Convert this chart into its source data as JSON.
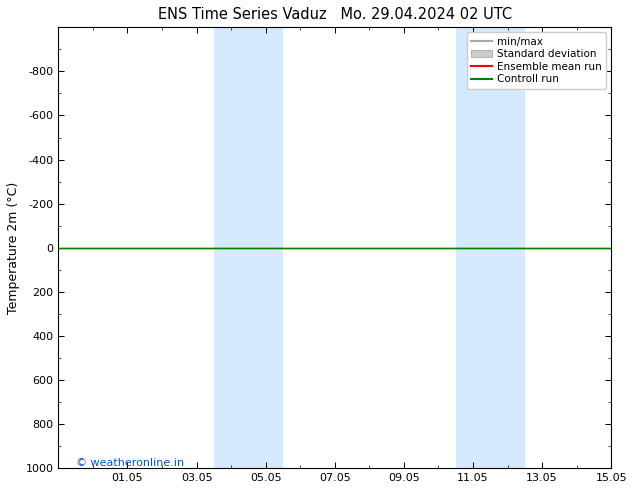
{
  "title_left": "ENS Time Series Vaduz",
  "title_right": "Mo. 29.04.2024 02 UTC",
  "ylabel": "Temperature 2m (°C)",
  "xlim": [
    0,
    16
  ],
  "xtick_positions": [
    2,
    4,
    6,
    8,
    10,
    12,
    14,
    16
  ],
  "xtick_labels": [
    "01.05",
    "03.05",
    "05.05",
    "07.05",
    "09.05",
    "11.05",
    "13.05",
    "15.05"
  ],
  "ylim_top": -1000,
  "ylim_bottom": 1000,
  "ytick_positions": [
    -800,
    -600,
    -400,
    -200,
    0,
    200,
    400,
    600,
    800,
    1000
  ],
  "ytick_labels": [
    "-800",
    "-600",
    "-400",
    "-200",
    "0",
    "200",
    "400",
    "600",
    "800",
    "1000"
  ],
  "shaded_regions": [
    {
      "xstart": 4.5,
      "xend": 6.5
    },
    {
      "xstart": 11.5,
      "xend": 13.5
    }
  ],
  "shade_color": "#d6eaff",
  "horizontal_line_y": 0,
  "control_run_color": "#008000",
  "ensemble_mean_color": "#ff0000",
  "watermark": "© weatheronline.in",
  "watermark_color": "#0055cc",
  "background_color": "#ffffff",
  "legend_items": [
    {
      "label": "min/max",
      "type": "line",
      "color": "#aaaaaa",
      "lw": 1.5
    },
    {
      "label": "Standard deviation",
      "type": "patch",
      "color": "#cccccc"
    },
    {
      "label": "Ensemble mean run",
      "type": "line",
      "color": "#ff0000",
      "lw": 1.5
    },
    {
      "label": "Controll run",
      "type": "line",
      "color": "#008000",
      "lw": 1.5
    }
  ],
  "title_fontsize": 10.5,
  "axis_label_fontsize": 9,
  "tick_fontsize": 8,
  "legend_fontsize": 7.5,
  "watermark_fontsize": 8
}
